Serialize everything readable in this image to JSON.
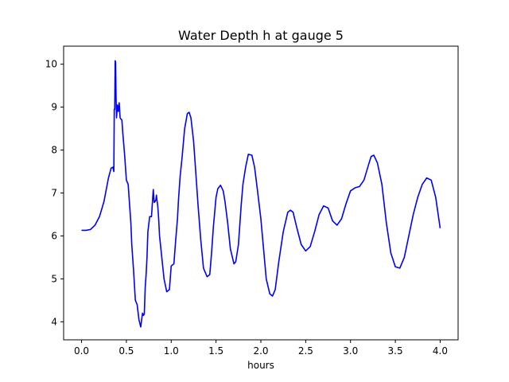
{
  "chart_data": {
    "type": "line",
    "title": "Water Depth h at gauge 5",
    "xlabel": "hours",
    "ylabel": "",
    "xlim": [
      -0.2,
      4.2
    ],
    "ylim": [
      3.58,
      10.42
    ],
    "xticks": [
      0.0,
      0.5,
      1.0,
      1.5,
      2.0,
      2.5,
      3.0,
      3.5,
      4.0
    ],
    "xtick_labels": [
      "0.0",
      "0.5",
      "1.0",
      "1.5",
      "2.0",
      "2.5",
      "3.0",
      "3.5",
      "4.0"
    ],
    "yticks": [
      4,
      5,
      6,
      7,
      8,
      9,
      10
    ],
    "ytick_labels": [
      "4",
      "5",
      "6",
      "7",
      "8",
      "9",
      "10"
    ],
    "grid": false,
    "legend": "none",
    "series": [
      {
        "color": "#0000ff",
        "x": [
          0.0,
          0.05,
          0.1,
          0.15,
          0.2,
          0.25,
          0.3,
          0.33,
          0.35,
          0.36,
          0.365,
          0.37,
          0.375,
          0.38,
          0.385,
          0.39,
          0.4,
          0.41,
          0.42,
          0.43,
          0.44,
          0.45,
          0.46,
          0.48,
          0.5,
          0.52,
          0.53,
          0.55,
          0.56,
          0.58,
          0.6,
          0.62,
          0.64,
          0.66,
          0.68,
          0.69,
          0.7,
          0.71,
          0.72,
          0.73,
          0.74,
          0.76,
          0.78,
          0.8,
          0.81,
          0.82,
          0.83,
          0.835,
          0.84,
          0.85,
          0.86,
          0.87,
          0.88,
          0.9,
          0.92,
          0.95,
          0.98,
          1.0,
          1.03,
          1.05,
          1.07,
          1.08,
          1.1,
          1.12,
          1.15,
          1.18,
          1.2,
          1.22,
          1.25,
          1.27,
          1.3,
          1.33,
          1.36,
          1.4,
          1.43,
          1.45,
          1.47,
          1.5,
          1.52,
          1.55,
          1.58,
          1.6,
          1.63,
          1.66,
          1.7,
          1.72,
          1.75,
          1.78,
          1.8,
          1.83,
          1.86,
          1.9,
          1.93,
          1.96,
          2.0,
          2.03,
          2.06,
          2.1,
          2.13,
          2.16,
          2.2,
          2.25,
          2.3,
          2.33,
          2.36,
          2.4,
          2.45,
          2.5,
          2.55,
          2.6,
          2.65,
          2.7,
          2.75,
          2.8,
          2.85,
          2.9,
          2.95,
          3.0,
          3.05,
          3.1,
          3.15,
          3.2,
          3.23,
          3.26,
          3.3,
          3.35,
          3.4,
          3.45,
          3.5,
          3.55,
          3.6,
          3.65,
          3.7,
          3.75,
          3.8,
          3.85,
          3.9,
          3.95,
          4.0
        ],
        "y": [
          6.13,
          6.13,
          6.15,
          6.25,
          6.45,
          6.8,
          7.35,
          7.58,
          7.6,
          7.5,
          8.95,
          8.95,
          10.08,
          10.05,
          9.2,
          8.75,
          9.05,
          8.9,
          9.1,
          8.75,
          8.72,
          8.7,
          8.4,
          7.9,
          7.3,
          7.2,
          6.9,
          6.3,
          5.8,
          5.2,
          4.5,
          4.4,
          4.05,
          3.88,
          4.2,
          4.15,
          4.18,
          4.8,
          5.1,
          5.5,
          6.1,
          6.45,
          6.45,
          7.08,
          6.78,
          6.8,
          6.85,
          6.95,
          6.85,
          6.7,
          6.4,
          6.0,
          5.8,
          5.4,
          5.0,
          4.7,
          4.75,
          5.3,
          5.35,
          5.9,
          6.4,
          6.8,
          7.4,
          7.8,
          8.5,
          8.85,
          8.88,
          8.75,
          8.2,
          7.6,
          6.7,
          5.9,
          5.25,
          5.05,
          5.1,
          5.6,
          6.2,
          6.9,
          7.1,
          7.18,
          7.05,
          6.8,
          6.3,
          5.7,
          5.35,
          5.4,
          5.8,
          6.7,
          7.2,
          7.6,
          7.9,
          7.88,
          7.6,
          7.1,
          6.4,
          5.7,
          5.0,
          4.65,
          4.6,
          4.75,
          5.4,
          6.1,
          6.55,
          6.6,
          6.55,
          6.2,
          5.8,
          5.65,
          5.75,
          6.1,
          6.5,
          6.7,
          6.65,
          6.35,
          6.25,
          6.4,
          6.75,
          7.05,
          7.12,
          7.15,
          7.3,
          7.65,
          7.85,
          7.88,
          7.7,
          7.2,
          6.3,
          5.6,
          5.28,
          5.25,
          5.5,
          6.0,
          6.5,
          6.9,
          7.2,
          7.35,
          7.3,
          6.9,
          6.18
        ]
      }
    ]
  }
}
